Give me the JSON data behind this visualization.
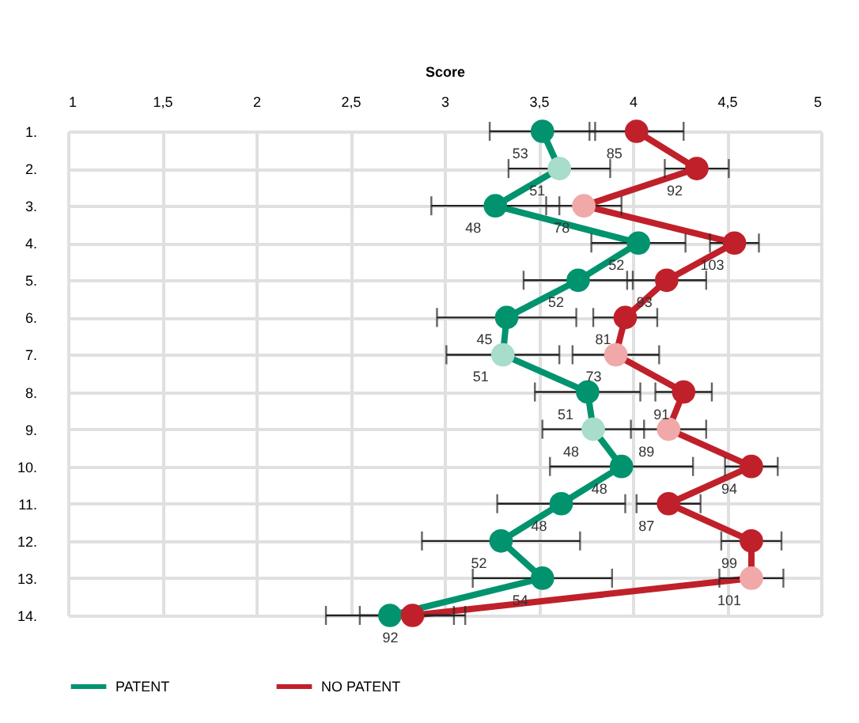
{
  "chart_data": {
    "type": "line",
    "xlabel": "Score",
    "orientation": "horizontal",
    "categories": [
      "1.",
      "2.",
      "3.",
      "4.",
      "5.",
      "6.",
      "7.",
      "8.",
      "9.",
      "10.",
      "11.",
      "12.",
      "13.",
      "14."
    ],
    "xlim": [
      1,
      5
    ],
    "xticks": [
      1,
      {
        "value": 1.5,
        "label": "1,5"
      },
      2,
      {
        "value": 2.5,
        "label": "2,5"
      },
      3,
      {
        "value": 3.5,
        "label": "3,5"
      },
      4,
      {
        "value": 4.5,
        "label": "4,5"
      },
      5
    ],
    "annotations": [
      {
        "text": "53",
        "x": 3.52,
        "y": "1."
      },
      {
        "text": "51",
        "x": 3.61,
        "y": "2."
      },
      {
        "text": "48",
        "x": 3.27,
        "y": "3."
      },
      {
        "text": "52",
        "x": 4.03,
        "y": "4."
      },
      {
        "text": "52",
        "x": 3.71,
        "y": "5."
      },
      {
        "text": "45",
        "x": 3.33,
        "y": "6."
      },
      {
        "text": "51",
        "x": 3.31,
        "y": "7."
      },
      {
        "text": "51",
        "x": 3.76,
        "y": "8."
      },
      {
        "text": "48",
        "x": 3.79,
        "y": "9."
      },
      {
        "text": "48",
        "x": 3.94,
        "y": "10."
      },
      {
        "text": "48",
        "x": 3.62,
        "y": "11."
      },
      {
        "text": "52",
        "x": 3.3,
        "y": "12."
      },
      {
        "text": "54",
        "x": 3.52,
        "y": "13."
      },
      {
        "text": "85",
        "x": 4.02,
        "y": "1."
      },
      {
        "text": "92",
        "x": 4.34,
        "y": "2."
      },
      {
        "text": "78",
        "x": 3.74,
        "y": "3."
      },
      {
        "text": "103",
        "x": 4.54,
        "y": "4."
      },
      {
        "text": "93",
        "x": 4.18,
        "y": "5."
      },
      {
        "text": "81",
        "x": 3.96,
        "y": "6."
      },
      {
        "text": "73",
        "x": 3.91,
        "y": "7."
      },
      {
        "text": "91",
        "x": 4.27,
        "y": "8."
      },
      {
        "text": "89",
        "x": 4.19,
        "y": "9."
      },
      {
        "text": "94",
        "x": 4.63,
        "y": "10."
      },
      {
        "text": "87",
        "x": 4.19,
        "y": "11."
      },
      {
        "text": "99",
        "x": 4.63,
        "y": "12."
      },
      {
        "text": "101",
        "x": 4.63,
        "y": "13."
      },
      {
        "text": "92",
        "x": 2.83,
        "y": "14."
      }
    ],
    "grid": true,
    "legend": "bottom",
    "marker": "circle",
    "line_style": "solid",
    "series": [
      {
        "name": "PATENT",
        "color": "#00936e",
        "colors": [
          "#00936e",
          "#a8dccb",
          "#00936e",
          "#00936e",
          "#00936e",
          "#00936e",
          "#a8dccb",
          "#00936e",
          "#a8dccb",
          "#00936e",
          "#00936e",
          "#00936e",
          "#00936e",
          "#00936e"
        ],
        "values": [
          3.52,
          3.61,
          3.27,
          4.03,
          3.71,
          3.33,
          3.31,
          3.76,
          3.79,
          3.94,
          3.62,
          3.3,
          3.52,
          2.71
        ],
        "errors": [
          0.28,
          0.27,
          0.34,
          0.25,
          0.29,
          0.37,
          0.3,
          0.28,
          0.27,
          0.38,
          0.34,
          0.42,
          0.37,
          0.34
        ]
      },
      {
        "name": "NO PATENT",
        "color": "#c0202a",
        "colors": [
          "#c0202a",
          "#c0202a",
          "#f0a8a8",
          "#c0202a",
          "#c0202a",
          "#c0202a",
          "#f0a8a8",
          "#c0202a",
          "#f0a8a8",
          "#c0202a",
          "#c0202a",
          "#c0202a",
          "#f0a8a8",
          "#c0202a"
        ],
        "values": [
          4.02,
          4.34,
          3.74,
          4.54,
          4.18,
          3.96,
          3.91,
          4.27,
          4.19,
          4.63,
          4.19,
          4.63,
          4.63,
          2.83
        ],
        "errors": [
          0.25,
          0.17,
          0.2,
          0.13,
          0.21,
          0.17,
          0.23,
          0.15,
          0.2,
          0.14,
          0.17,
          0.16,
          0.17,
          0.28
        ]
      }
    ]
  }
}
